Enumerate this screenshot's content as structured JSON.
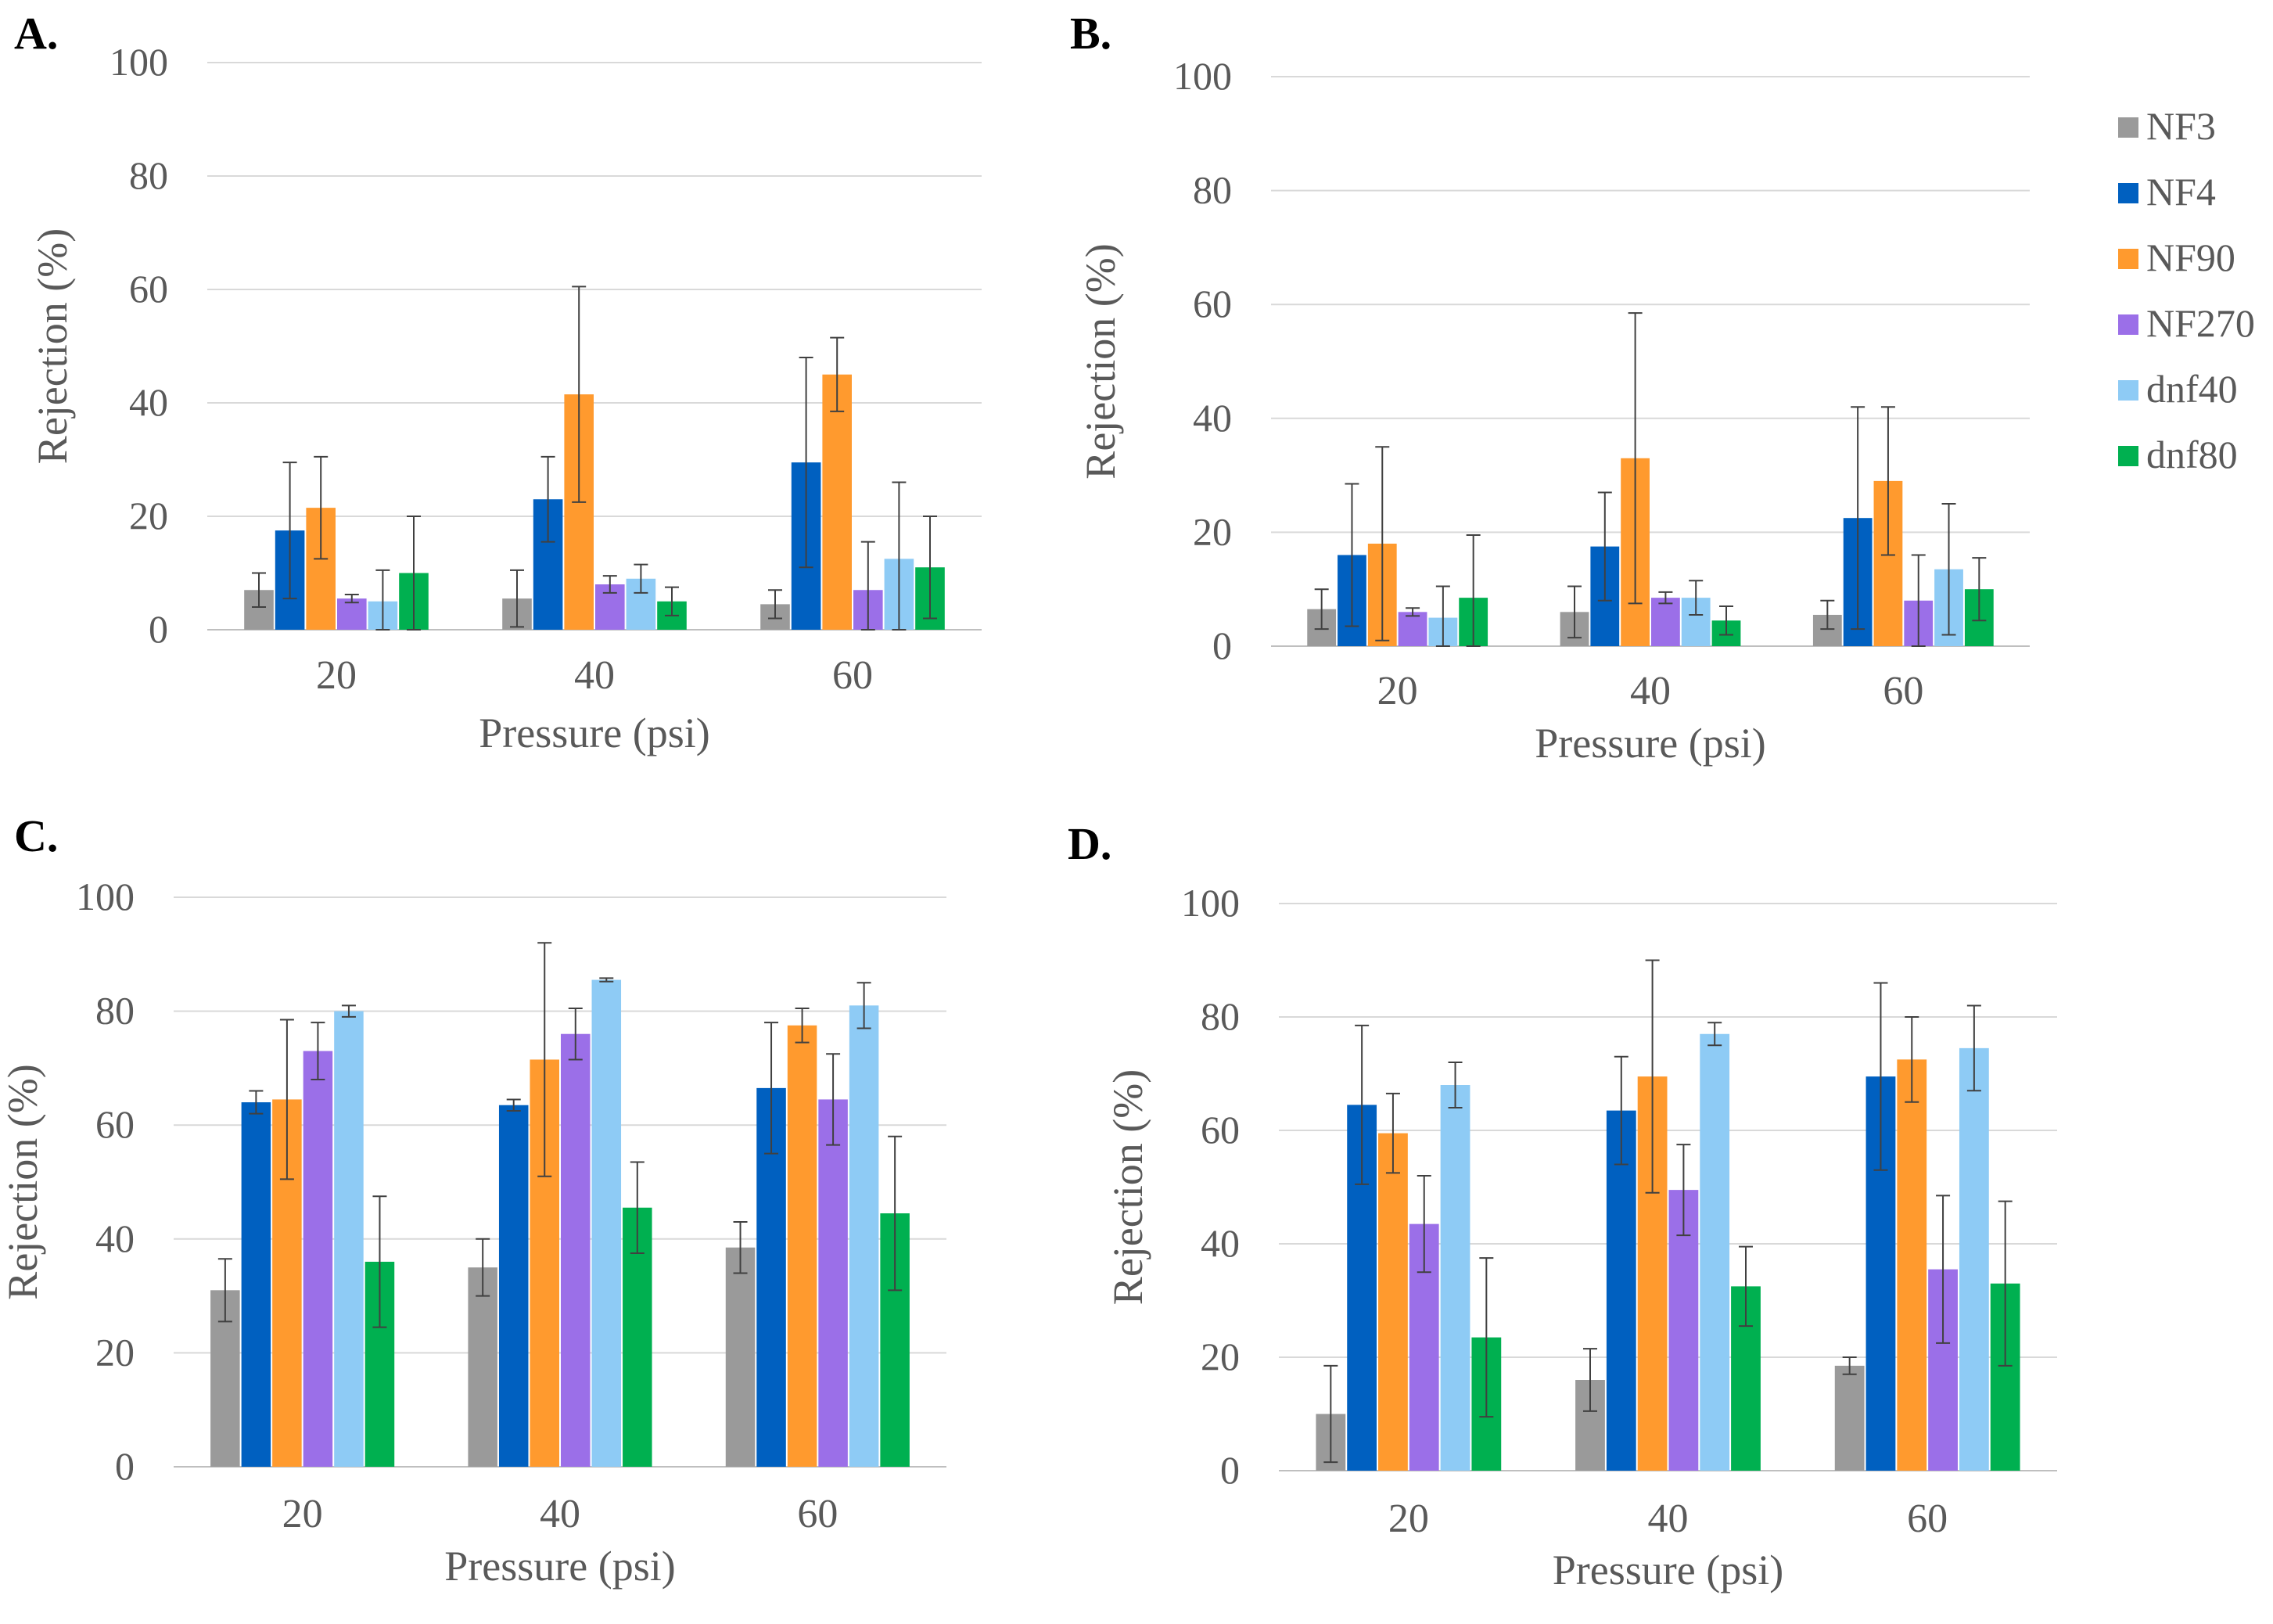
{
  "figure": {
    "series_names": [
      "NF3",
      "NF4",
      "NF90",
      "NF270",
      "dnf40",
      "dnf80"
    ],
    "series_colors": [
      "#9a9a9a",
      "#0060c0",
      "#ff9a2e",
      "#9b6fe8",
      "#8ecbf5",
      "#00b050"
    ],
    "legend_panel": "B"
  },
  "chart_data": [
    {
      "panel_label": "A.",
      "type": "bar",
      "categories": [
        "20",
        "40",
        "60"
      ],
      "xlabel": "Pressure (psi)",
      "ylabel": "Rejection (%)",
      "ylim": [
        0,
        100
      ],
      "yticks": [
        0,
        20,
        40,
        60,
        80,
        100
      ],
      "grid": true,
      "series": [
        {
          "name": "NF3",
          "values": [
            7,
            5.5,
            4.5
          ],
          "errors": [
            3,
            5,
            2.5
          ]
        },
        {
          "name": "NF4",
          "values": [
            17.5,
            23,
            29.5
          ],
          "errors": [
            12,
            7.5,
            18.5
          ]
        },
        {
          "name": "NF90",
          "values": [
            21.5,
            41.5,
            45
          ],
          "errors": [
            9,
            19,
            6.5
          ]
        },
        {
          "name": "NF270",
          "values": [
            5.5,
            8,
            7
          ],
          "errors": [
            0.7,
            1.5,
            8.5
          ]
        },
        {
          "name": "dnf40",
          "values": [
            5,
            9,
            12.5
          ],
          "errors": [
            5.5,
            2.5,
            13.5
          ]
        },
        {
          "name": "dnf80",
          "values": [
            10,
            5,
            11
          ],
          "errors": [
            10,
            2.5,
            9
          ]
        }
      ]
    },
    {
      "panel_label": "B.",
      "type": "bar",
      "categories": [
        "20",
        "40",
        "60"
      ],
      "xlabel": "Pressure (psi)",
      "ylabel": "Rejection (%)",
      "ylim": [
        0,
        100
      ],
      "yticks": [
        0,
        20,
        40,
        60,
        80,
        100
      ],
      "grid": true,
      "series": [
        {
          "name": "NF3",
          "values": [
            6.5,
            6,
            5.5
          ],
          "errors": [
            3.5,
            4.5,
            2.5
          ]
        },
        {
          "name": "NF4",
          "values": [
            16,
            17.5,
            22.5
          ],
          "errors": [
            12.5,
            9.5,
            19.5
          ]
        },
        {
          "name": "NF90",
          "values": [
            18,
            33,
            29
          ],
          "errors": [
            17,
            25.5,
            13
          ]
        },
        {
          "name": "NF270",
          "values": [
            6,
            8.5,
            8
          ],
          "errors": [
            0.7,
            1,
            8
          ]
        },
        {
          "name": "dnf40",
          "values": [
            5,
            8.5,
            13.5
          ],
          "errors": [
            5.5,
            3,
            11.5
          ]
        },
        {
          "name": "dnf80",
          "values": [
            8.5,
            4.5,
            10
          ],
          "errors": [
            11,
            2.5,
            5.5
          ]
        }
      ]
    },
    {
      "panel_label": "C.",
      "type": "bar",
      "categories": [
        "20",
        "40",
        "60"
      ],
      "xlabel": "Pressure (psi)",
      "ylabel": "Rejection (%)",
      "ylim": [
        0,
        100
      ],
      "yticks": [
        0,
        20,
        40,
        60,
        80,
        100
      ],
      "grid": true,
      "series": [
        {
          "name": "NF3",
          "values": [
            31,
            35,
            38.5
          ],
          "errors": [
            5.5,
            5,
            4.5
          ]
        },
        {
          "name": "NF4",
          "values": [
            64,
            63.5,
            66.5
          ],
          "errors": [
            2,
            1,
            11.5
          ]
        },
        {
          "name": "NF90",
          "values": [
            64.5,
            71.5,
            77.5
          ],
          "errors": [
            14,
            20.5,
            3
          ]
        },
        {
          "name": "NF270",
          "values": [
            73,
            76,
            64.5
          ],
          "errors": [
            5,
            4.5,
            8
          ]
        },
        {
          "name": "dnf40",
          "values": [
            80,
            85.5,
            81
          ],
          "errors": [
            1,
            0.3,
            4
          ]
        },
        {
          "name": "dnf80",
          "values": [
            36,
            45.5,
            44.5
          ],
          "errors": [
            11.5,
            8,
            13.5
          ]
        }
      ]
    },
    {
      "panel_label": "D.",
      "type": "bar",
      "categories": [
        "20",
        "40",
        "60"
      ],
      "xlabel": "Pressure (psi)",
      "ylabel": "Rejection (%)",
      "ylim": [
        0,
        100
      ],
      "yticks": [
        0,
        20,
        40,
        60,
        80,
        100
      ],
      "grid": true,
      "series": [
        {
          "name": "NF3",
          "values": [
            10,
            16,
            18.5
          ],
          "errors": [
            8.5,
            5.5,
            1.5
          ]
        },
        {
          "name": "NF4",
          "values": [
            64.5,
            63.5,
            69.5
          ],
          "errors": [
            14,
            9.5,
            16.5
          ]
        },
        {
          "name": "NF90",
          "values": [
            59.5,
            69.5,
            72.5
          ],
          "errors": [
            7,
            20.5,
            7.5
          ]
        },
        {
          "name": "NF270",
          "values": [
            43.5,
            49.5,
            35.5
          ],
          "errors": [
            8.5,
            8,
            13
          ]
        },
        {
          "name": "dnf40",
          "values": [
            68,
            77,
            74.5
          ],
          "errors": [
            4,
            2,
            7.5
          ]
        },
        {
          "name": "dnf80",
          "values": [
            23.5,
            32.5,
            33
          ],
          "errors": [
            14,
            7,
            14.5
          ]
        }
      ]
    }
  ]
}
